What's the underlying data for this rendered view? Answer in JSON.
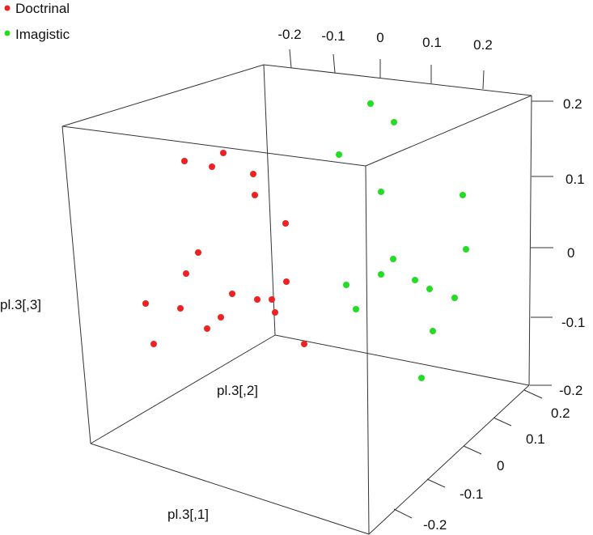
{
  "chart_data": {
    "type": "scatter",
    "title": "",
    "legend": {
      "placement": "top-left",
      "entries": [
        {
          "label": "Doctrinal",
          "color": "#ee2222"
        },
        {
          "label": "Imagistic",
          "color": "#22dd22"
        }
      ]
    },
    "axes": {
      "x": {
        "label": "pl.3[,1]",
        "ticks": [
          "0.2",
          "0.1",
          "0",
          "-0.1",
          "-0.2"
        ]
      },
      "y": {
        "label": "pl.3[,2]",
        "ticks": [
          "-0.2",
          "-0.1",
          "0",
          "0.1",
          "0.2"
        ]
      },
      "z": {
        "label": "pl.3[,3]",
        "ticks": [
          "0.2",
          "0.1",
          "0",
          "-0.1",
          "-0.2"
        ]
      }
    },
    "series": [
      {
        "name": "Doctrinal",
        "color": "#ee2222",
        "points": [
          [
            228,
            199
          ],
          [
            262,
            206
          ],
          [
            276,
            189
          ],
          [
            313,
            215
          ],
          [
            315,
            241
          ],
          [
            353,
            276
          ],
          [
            245,
            312
          ],
          [
            230,
            338
          ],
          [
            354,
            348
          ],
          [
            287,
            363
          ],
          [
            318,
            370
          ],
          [
            336,
            370
          ],
          [
            340,
            386
          ],
          [
            273,
            392
          ],
          [
            256,
            406
          ],
          [
            223,
            381
          ],
          [
            180,
            375
          ],
          [
            190,
            425
          ],
          [
            376,
            425
          ]
        ]
      },
      {
        "name": "Imagistic",
        "color": "#22dd22",
        "points": [
          [
            458,
            128
          ],
          [
            487,
            151
          ],
          [
            419,
            191
          ],
          [
            471,
            237
          ],
          [
            572,
            241
          ],
          [
            576,
            308
          ],
          [
            486,
            320
          ],
          [
            471,
            339
          ],
          [
            513,
            346
          ],
          [
            531,
            357
          ],
          [
            562,
            368
          ],
          [
            428,
            352
          ],
          [
            440,
            382
          ],
          [
            535,
            409
          ],
          [
            521,
            467
          ]
        ]
      }
    ]
  }
}
